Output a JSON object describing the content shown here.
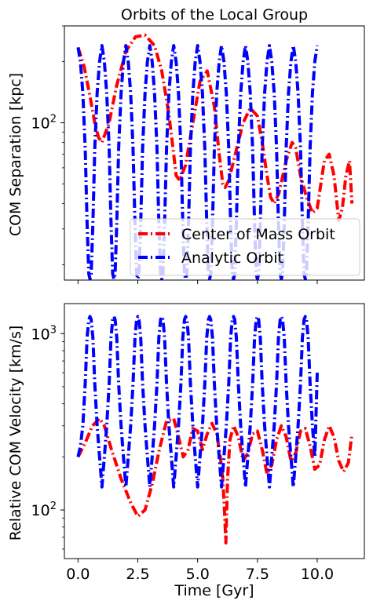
{
  "colors": {
    "com": "#ff0000",
    "analytic": "#0000ff"
  },
  "chart_data": [
    {
      "type": "line",
      "title": "Orbits of the Local Group",
      "ylabel": "COM Separation [kpc]",
      "xlabel": "",
      "yscale": "log",
      "xlim": [
        -0.57,
        11.97
      ],
      "ylim": [
        16.8,
        300
      ],
      "y_ticks": [
        {
          "value": 100,
          "base": "10",
          "exp": "2"
        }
      ],
      "y_minor_ticks": [
        20,
        30,
        40,
        50,
        60,
        70,
        80,
        90,
        200,
        300
      ],
      "x_ticks": [
        0,
        2.5,
        5,
        7.5,
        10
      ],
      "legend": {
        "position": "lower-right",
        "entries": [
          "Center of Mass Orbit",
          "Analytic Orbit"
        ]
      },
      "series": [
        {
          "name": "Center of Mass Orbit",
          "color": "#ff0000",
          "x": [
            0.0,
            0.25,
            0.5,
            0.7,
            0.85,
            1.0,
            1.3,
            1.6,
            2.0,
            2.4,
            2.8,
            3.2,
            3.5,
            3.8,
            4.0,
            4.1,
            4.25,
            4.5,
            4.8,
            5.1,
            5.4,
            5.7,
            5.9,
            6.05,
            6.15,
            6.3,
            6.6,
            6.9,
            7.2,
            7.5,
            7.7,
            7.9,
            8.05,
            8.2,
            8.4,
            8.7,
            8.95,
            9.1,
            9.3,
            9.55,
            9.8,
            10.0,
            10.15,
            10.3,
            10.5,
            10.7,
            10.9,
            11.05,
            11.2,
            11.35,
            11.45
          ],
          "y": [
            235,
            190,
            135,
            100,
            85,
            80,
            100,
            150,
            225,
            265,
            270,
            240,
            180,
            110,
            70,
            55,
            52,
            62,
            100,
            160,
            180,
            120,
            70,
            50,
            48,
            52,
            72,
            100,
            118,
            108,
            80,
            55,
            43,
            40,
            45,
            65,
            80,
            75,
            55,
            43,
            36,
            38,
            50,
            65,
            70,
            55,
            33,
            38,
            55,
            65,
            40
          ]
        },
        {
          "name": "Analytic Orbit",
          "color": "#0000ff",
          "x": [
            0.0,
            0.1,
            0.2,
            0.3,
            0.38,
            0.45,
            0.5,
            0.55,
            0.62,
            0.7,
            0.8,
            0.9,
            1.0,
            1.1,
            1.2,
            1.3,
            1.38,
            1.45,
            1.5,
            1.55,
            1.62,
            1.7,
            1.8,
            1.9,
            2.0,
            2.1,
            2.2,
            2.3,
            2.38,
            2.45,
            2.5,
            2.55,
            2.62,
            2.7,
            2.8,
            2.9,
            3.0,
            3.1,
            3.2,
            3.3,
            3.38,
            3.45,
            3.5,
            3.55,
            3.62,
            3.7,
            3.8,
            3.9,
            4.0,
            4.1,
            4.2,
            4.3,
            4.38,
            4.45,
            4.5,
            4.55,
            4.62,
            4.7,
            4.8,
            4.9,
            5.0,
            5.1,
            5.2,
            5.3,
            5.38,
            5.45,
            5.5,
            5.55,
            5.62,
            5.7,
            5.8,
            5.9,
            6.0,
            6.1,
            6.2,
            6.3,
            6.38,
            6.45,
            6.5,
            6.55,
            6.62,
            6.7,
            6.8,
            6.9,
            7.0,
            7.1,
            7.2,
            7.3,
            7.38,
            7.45,
            7.5,
            7.55,
            7.62,
            7.7,
            7.8,
            7.9,
            8.0,
            8.1,
            8.2,
            8.3,
            8.38,
            8.45,
            8.5,
            8.55,
            8.62,
            8.7,
            8.8,
            8.9,
            9.0,
            9.1,
            9.2,
            9.3,
            9.38,
            9.45,
            9.5,
            9.55,
            9.62,
            9.7,
            9.8,
            9.9,
            10.0
          ],
          "y": [
            235,
            200,
            140,
            75,
            32,
            18,
            17,
            18,
            32,
            75,
            140,
            200,
            240,
            200,
            140,
            75,
            32,
            18,
            17,
            18,
            32,
            75,
            140,
            200,
            240,
            200,
            140,
            75,
            32,
            18,
            17,
            18,
            32,
            75,
            140,
            200,
            240,
            200,
            140,
            75,
            32,
            18,
            17,
            18,
            32,
            75,
            140,
            200,
            240,
            200,
            140,
            75,
            32,
            18,
            17,
            18,
            32,
            75,
            140,
            200,
            240,
            200,
            140,
            75,
            32,
            18,
            17,
            18,
            32,
            75,
            140,
            200,
            240,
            200,
            140,
            75,
            32,
            18,
            17,
            18,
            32,
            75,
            140,
            200,
            240,
            200,
            140,
            75,
            32,
            18,
            17,
            18,
            32,
            75,
            140,
            200,
            240,
            200,
            140,
            75,
            32,
            18,
            17,
            18,
            32,
            75,
            140,
            200,
            240,
            200,
            140,
            75,
            32,
            18,
            17,
            18,
            32,
            75,
            140,
            200,
            240
          ]
        }
      ]
    },
    {
      "type": "line",
      "title": "",
      "ylabel": "Relative COM Velocity [km/s]",
      "xlabel": "Time [Gyr]",
      "yscale": "log",
      "xlim": [
        -0.57,
        11.97
      ],
      "ylim": [
        53,
        1480
      ],
      "y_ticks": [
        {
          "value": 100,
          "base": "10",
          "exp": "2"
        },
        {
          "value": 1000,
          "base": "10",
          "exp": "3"
        }
      ],
      "y_minor_ticks": [
        60,
        70,
        80,
        90,
        200,
        300,
        400,
        500,
        600,
        700,
        800,
        900
      ],
      "x_ticks": [
        0,
        2.5,
        5,
        7.5,
        10
      ],
      "x_tick_labels": [
        "0.0",
        "2.5",
        "5.0",
        "7.5",
        "10.0"
      ],
      "series": [
        {
          "name": "Center of Mass Orbit",
          "color": "#ff0000",
          "x": [
            0.0,
            0.3,
            0.6,
            0.9,
            1.1,
            1.4,
            1.8,
            2.2,
            2.5,
            2.8,
            3.1,
            3.4,
            3.7,
            4.0,
            4.2,
            4.4,
            4.6,
            4.8,
            5.0,
            5.2,
            5.4,
            5.6,
            5.8,
            5.95,
            6.05,
            6.12,
            6.18,
            6.25,
            6.35,
            6.5,
            6.7,
            6.9,
            7.1,
            7.3,
            7.5,
            7.7,
            7.9,
            8.1,
            8.3,
            8.5,
            8.7,
            8.9,
            9.1,
            9.3,
            9.5,
            9.7,
            9.9,
            10.1,
            10.3,
            10.5,
            10.7,
            10.9,
            11.1,
            11.3,
            11.45
          ],
          "y": [
            200,
            240,
            300,
            330,
            300,
            220,
            150,
            110,
            92,
            100,
            140,
            220,
            320,
            330,
            260,
            200,
            220,
            290,
            280,
            220,
            270,
            310,
            270,
            200,
            150,
            100,
            65,
            150,
            250,
            300,
            260,
            190,
            210,
            270,
            280,
            220,
            160,
            180,
            250,
            300,
            260,
            190,
            210,
            280,
            290,
            230,
            170,
            180,
            250,
            300,
            260,
            190,
            165,
            185,
            270
          ]
        },
        {
          "name": "Analytic Orbit",
          "color": "#0000ff",
          "x": [
            0.0,
            0.1,
            0.2,
            0.3,
            0.38,
            0.45,
            0.5,
            0.55,
            0.62,
            0.7,
            0.8,
            0.9,
            1.0,
            1.1,
            1.2,
            1.3,
            1.38,
            1.45,
            1.5,
            1.55,
            1.62,
            1.7,
            1.8,
            1.9,
            2.0,
            2.1,
            2.2,
            2.3,
            2.38,
            2.45,
            2.5,
            2.55,
            2.62,
            2.7,
            2.8,
            2.9,
            3.0,
            3.1,
            3.2,
            3.3,
            3.38,
            3.45,
            3.5,
            3.55,
            3.62,
            3.7,
            3.8,
            3.9,
            4.0,
            4.1,
            4.2,
            4.3,
            4.38,
            4.45,
            4.5,
            4.55,
            4.62,
            4.7,
            4.8,
            4.9,
            5.0,
            5.1,
            5.2,
            5.3,
            5.38,
            5.45,
            5.5,
            5.55,
            5.62,
            5.7,
            5.8,
            5.9,
            6.0,
            6.1,
            6.2,
            6.3,
            6.38,
            6.45,
            6.5,
            6.55,
            6.62,
            6.7,
            6.8,
            6.9,
            7.0,
            7.1,
            7.2,
            7.3,
            7.38,
            7.45,
            7.5,
            7.55,
            7.62,
            7.7,
            7.8,
            7.9,
            8.0,
            8.1,
            8.2,
            8.3,
            8.38,
            8.45,
            8.5,
            8.55,
            8.62,
            8.7,
            8.8,
            8.9,
            9.0,
            9.1,
            9.2,
            9.3,
            9.38,
            9.45,
            9.5,
            9.55,
            9.62,
            9.7,
            9.8,
            9.9,
            10.0
          ],
          "y": [
            200,
            230,
            300,
            520,
            950,
            1200,
            1250,
            1200,
            950,
            520,
            300,
            200,
            135,
            200,
            300,
            520,
            950,
            1200,
            1250,
            1200,
            950,
            520,
            300,
            200,
            135,
            200,
            300,
            520,
            950,
            1200,
            1250,
            1200,
            950,
            520,
            300,
            200,
            135,
            200,
            300,
            520,
            950,
            1200,
            1250,
            1200,
            950,
            520,
            300,
            200,
            135,
            200,
            300,
            520,
            950,
            1200,
            1250,
            1200,
            950,
            520,
            300,
            200,
            135,
            200,
            300,
            520,
            950,
            1200,
            1250,
            1200,
            950,
            520,
            300,
            200,
            135,
            200,
            300,
            520,
            950,
            1200,
            1250,
            1200,
            950,
            520,
            300,
            200,
            135,
            200,
            300,
            520,
            950,
            1200,
            1250,
            1200,
            950,
            520,
            300,
            200,
            135,
            200,
            300,
            520,
            950,
            1200,
            1250,
            1200,
            950,
            520,
            300,
            200,
            135,
            200,
            300,
            520,
            950,
            1200,
            1250,
            1200,
            950,
            520,
            300,
            200,
            600
          ]
        }
      ]
    }
  ]
}
